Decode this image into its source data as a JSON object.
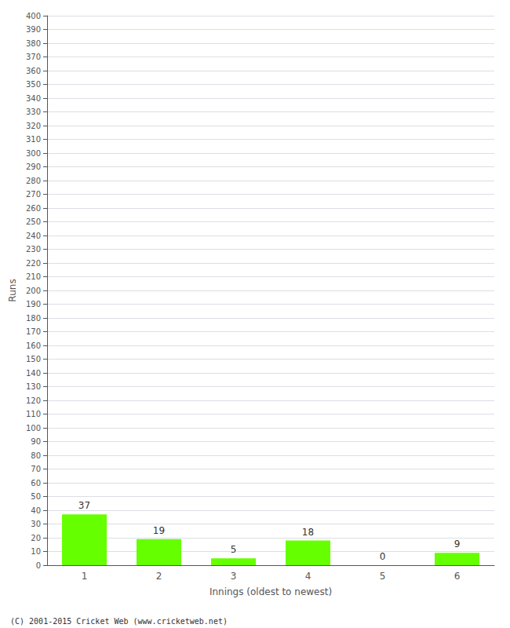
{
  "chart_data": {
    "type": "bar",
    "xlabel": "Innings (oldest to newest)",
    "ylabel": "Runs",
    "categories": [
      1,
      2,
      3,
      4,
      5,
      6
    ],
    "values": [
      37,
      19,
      5,
      18,
      0,
      9
    ],
    "color": "#66ff00",
    "ylim": [
      0,
      400
    ],
    "yticks": [
      0,
      10,
      20,
      30,
      40,
      50,
      60,
      70,
      80,
      90,
      100,
      110,
      120,
      130,
      140,
      150,
      160,
      170,
      180,
      190,
      200,
      210,
      220,
      230,
      240,
      250,
      260,
      270,
      280,
      290,
      300,
      310,
      320,
      330,
      340,
      350,
      360,
      370,
      380,
      390,
      400
    ],
    "grid": true,
    "data_labels": true,
    "annotations": [
      "(C) 2001-2015 Cricket Web (www.cricketweb.net)"
    ]
  }
}
